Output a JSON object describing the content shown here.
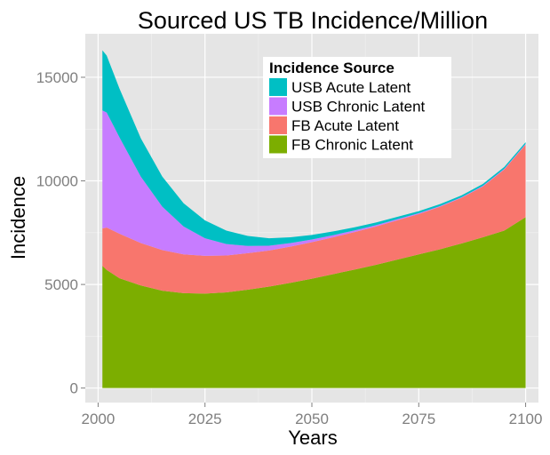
{
  "chart_data": {
    "type": "area",
    "stacked": true,
    "title": "Sourced US TB Incidence/Million",
    "xlabel": "Years",
    "ylabel": "Incidence",
    "xlim": [
      1997,
      2103
    ],
    "ylim": [
      -700,
      17100
    ],
    "x_ticks": [
      2000,
      2025,
      2050,
      2075,
      2100
    ],
    "y_ticks": [
      0,
      5000,
      10000,
      15000
    ],
    "grid": true,
    "legend_position": "top-right",
    "legend_title": "Incidence Source",
    "x": [
      2001,
      2002,
      2005,
      2010,
      2015,
      2020,
      2025,
      2030,
      2035,
      2040,
      2045,
      2050,
      2055,
      2060,
      2065,
      2070,
      2075,
      2080,
      2085,
      2090,
      2095,
      2100
    ],
    "series": [
      {
        "name": "FB Chronic Latent",
        "color": "#7cae00",
        "values": [
          5900,
          5700,
          5300,
          4950,
          4700,
          4580,
          4560,
          4620,
          4750,
          4900,
          5080,
          5280,
          5500,
          5720,
          5950,
          6200,
          6450,
          6700,
          6980,
          7280,
          7600,
          8250
        ]
      },
      {
        "name": "FB Acute Latent",
        "color": "#f8766d",
        "values": [
          1800,
          2050,
          2150,
          2050,
          1960,
          1870,
          1820,
          1780,
          1760,
          1740,
          1750,
          1760,
          1780,
          1810,
          1850,
          1900,
          1950,
          2050,
          2200,
          2450,
          2950,
          3500
        ]
      },
      {
        "name": "USB Chronic Latent",
        "color": "#c77cff",
        "values": [
          5700,
          5550,
          4650,
          3200,
          2100,
          1350,
          850,
          550,
          350,
          230,
          170,
          130,
          100,
          80,
          60,
          50,
          40,
          35,
          30,
          30,
          30,
          30
        ]
      },
      {
        "name": "USB Acute Latent",
        "color": "#00bfc4",
        "values": [
          2900,
          2750,
          2350,
          1850,
          1450,
          1120,
          860,
          650,
          480,
          360,
          280,
          220,
          180,
          150,
          130,
          115,
          100,
          95,
          90,
          90,
          90,
          90
        ]
      }
    ]
  }
}
